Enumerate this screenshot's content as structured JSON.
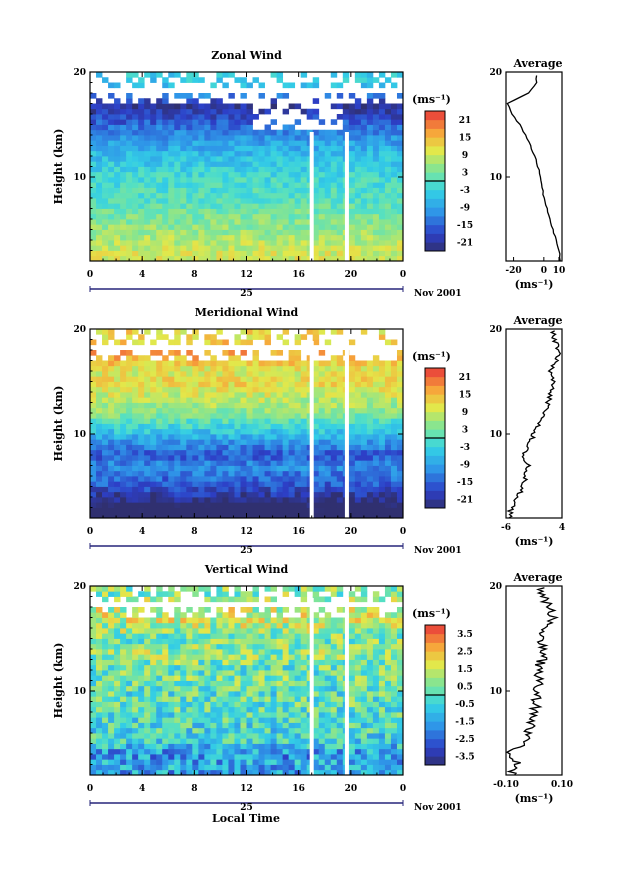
{
  "page": {
    "xlabel": "Local Time"
  },
  "chart_data": [
    {
      "type": "heatmap",
      "title": "Zonal Wind",
      "ylabel": "Height (km)",
      "xticks": [
        "0",
        "4",
        "8",
        "12",
        "16",
        "20",
        "0"
      ],
      "xlim": [
        0,
        24
      ],
      "yticks": [
        "10",
        "20"
      ],
      "ylim": [
        2,
        20
      ],
      "date_day": "25",
      "date_month": "Nov 2001",
      "unit": "(ms⁻¹)",
      "colorbar_ticks": [
        "21",
        "15",
        "9",
        "3",
        "-3",
        "-9",
        "-15",
        "-21"
      ],
      "colorbar_range": [
        -24,
        24
      ],
      "profile": {
        "title": "Average",
        "xticks": [
          "-20",
          "0",
          "10"
        ],
        "xlim": [
          -25,
          12
        ],
        "unit": "(ms⁻¹)",
        "heights": [
          2,
          3,
          4,
          5,
          6,
          7,
          8,
          9,
          10,
          11,
          12,
          13,
          14,
          15,
          16,
          17,
          18,
          19
        ],
        "values": [
          11,
          10,
          8,
          6,
          4,
          2,
          0,
          -1,
          -2,
          -4,
          -6,
          -9,
          -12,
          -16,
          -21,
          -24,
          -10,
          -5
        ]
      }
    },
    {
      "type": "heatmap",
      "title": "Meridional Wind",
      "ylabel": "Height (km)",
      "xticks": [
        "0",
        "4",
        "8",
        "12",
        "16",
        "20",
        "0"
      ],
      "xlim": [
        0,
        24
      ],
      "yticks": [
        "10",
        "20"
      ],
      "ylim": [
        2,
        20
      ],
      "date_day": "25",
      "date_month": "Nov 2001",
      "unit": "(ms⁻¹)",
      "colorbar_ticks": [
        "21",
        "15",
        "9",
        "3",
        "-3",
        "-9",
        "-15",
        "-21"
      ],
      "colorbar_range": [
        -24,
        24
      ],
      "profile": {
        "title": "Average",
        "xticks": [
          "-6",
          "4"
        ],
        "xlim": [
          -6,
          4
        ],
        "unit": "(ms⁻¹)",
        "heights": [
          2,
          3,
          4,
          5,
          6,
          7,
          8,
          9,
          10,
          11,
          12,
          13,
          14,
          15,
          16,
          17,
          18,
          19
        ],
        "values": [
          -5.5,
          -5,
          -4,
          -3,
          -2.5,
          -2,
          -3,
          -2,
          -1,
          0,
          1,
          1.5,
          2,
          2.5,
          2,
          3,
          3.5,
          2.5
        ]
      }
    },
    {
      "type": "heatmap",
      "title": "Vertical Wind",
      "ylabel": "Height (km)",
      "xticks": [
        "0",
        "4",
        "8",
        "12",
        "16",
        "20",
        "0"
      ],
      "xlim": [
        0,
        24
      ],
      "yticks": [
        "10",
        "20"
      ],
      "ylim": [
        2,
        20
      ],
      "date_day": "25",
      "date_month": "Nov 2001",
      "unit": "(ms⁻¹)",
      "colorbar_ticks": [
        "3.5",
        "2.5",
        "1.5",
        "0.5",
        "-0.5",
        "-1.5",
        "-2.5",
        "-3.5"
      ],
      "colorbar_range": [
        -4,
        4
      ],
      "profile": {
        "title": "Average",
        "xticks": [
          "-0.10",
          "0.10"
        ],
        "xlim": [
          -0.1,
          0.1
        ],
        "unit": "(ms⁻¹)",
        "heights": [
          2,
          3,
          4,
          5,
          6,
          7,
          8,
          9,
          10,
          11,
          12,
          13,
          14,
          15,
          16,
          17,
          18,
          19
        ],
        "values": [
          -0.08,
          -0.06,
          -0.09,
          -0.03,
          -0.02,
          -0.01,
          0.0,
          0.01,
          0.0,
          0.02,
          0.01,
          0.03,
          0.04,
          0.02,
          0.05,
          0.07,
          0.06,
          0.03
        ]
      }
    }
  ]
}
